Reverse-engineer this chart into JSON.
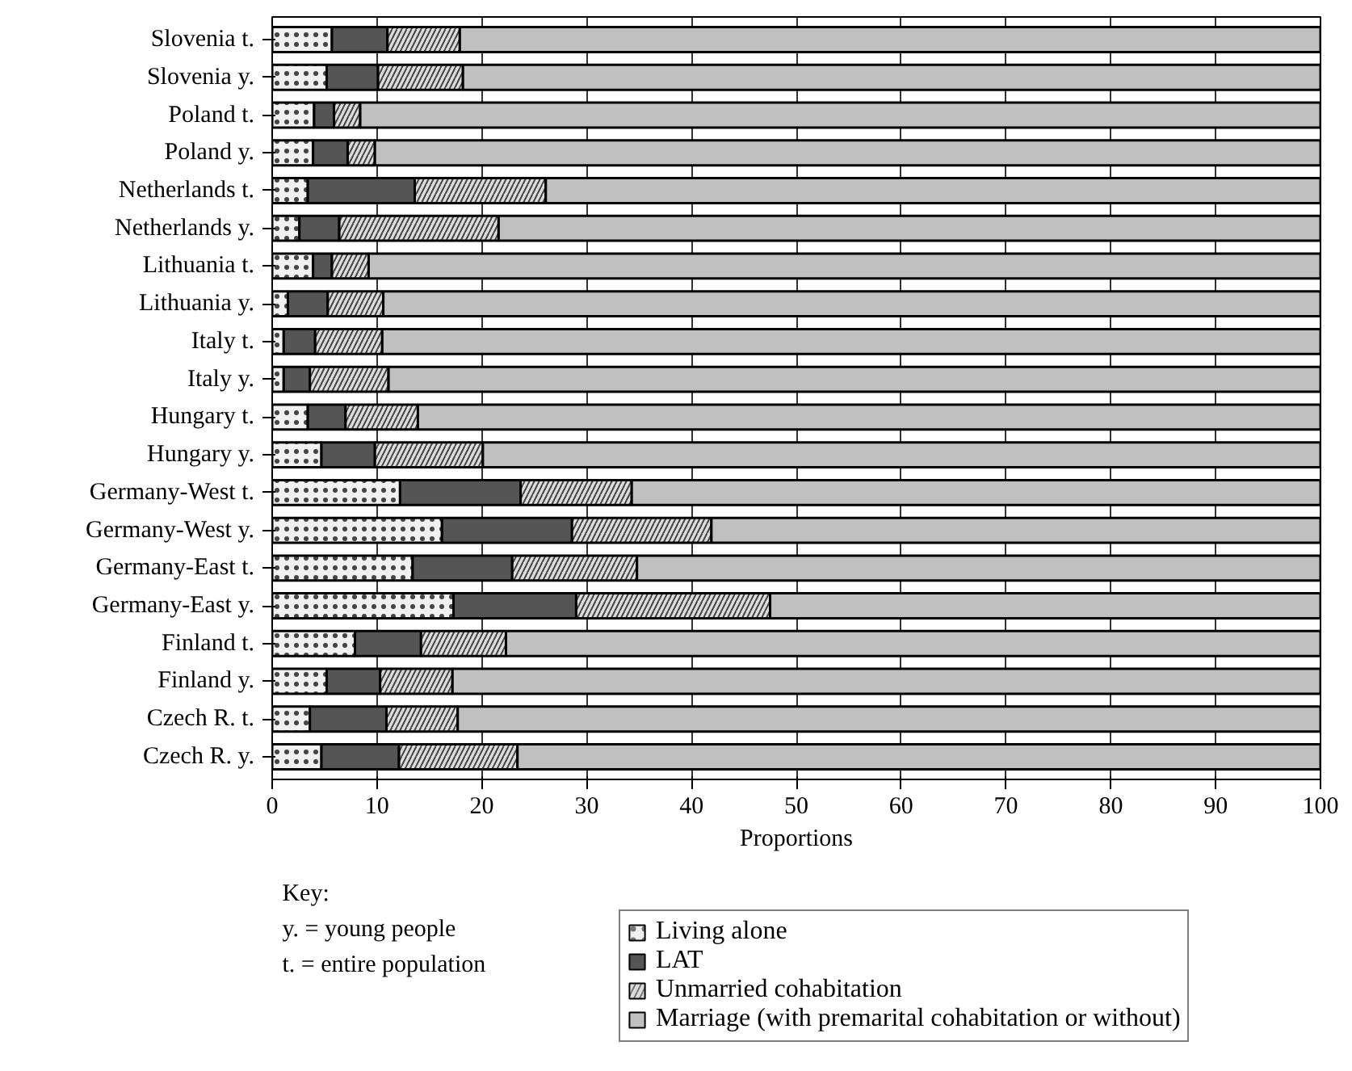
{
  "chart_data": {
    "type": "bar",
    "orientation": "horizontal",
    "stacked": true,
    "xlabel": "Proportions",
    "categories": [
      "Slovenia t.",
      "Slovenia y.",
      "Poland t.",
      "Poland y.",
      "Netherlands t.",
      "Netherlands y.",
      "Lithuania t.",
      "Lithuania y.",
      "Italy t.",
      "Italy y.",
      "Hungary t.",
      "Hungary y.",
      "Germany-West t.",
      "Germany-West y.",
      "Germany-East t.",
      "Germany-East y.",
      "Finland t.",
      "Finland y.",
      "Czech R. t.",
      "Czech R. y."
    ],
    "series": [
      {
        "name": "Living alone",
        "color": "#f0f0f0",
        "values": [
          5.7,
          5.2,
          4.0,
          3.9,
          3.4,
          2.6,
          3.9,
          1.5,
          1.1,
          1.1,
          3.4,
          4.7,
          12.2,
          16.2,
          13.4,
          17.3,
          7.9,
          5.2,
          3.6,
          4.7
        ]
      },
      {
        "name": "LAT",
        "color": "#555555",
        "values": [
          5.3,
          4.9,
          1.9,
          3.3,
          10.2,
          3.8,
          1.8,
          3.8,
          3.0,
          2.5,
          3.6,
          5.1,
          11.5,
          12.4,
          9.5,
          11.7,
          6.3,
          5.1,
          7.3,
          7.4
        ]
      },
      {
        "name": "Unmarried cohabitation",
        "color": "#dcdcdc",
        "values": [
          6.9,
          8.1,
          2.5,
          2.6,
          12.5,
          15.2,
          3.5,
          5.3,
          6.4,
          7.5,
          6.9,
          10.3,
          10.6,
          13.3,
          11.9,
          18.5,
          8.1,
          6.9,
          6.8,
          11.3
        ]
      },
      {
        "name": "Marriage (with premarital cohabitation or without)",
        "color": "#c0c0c0",
        "values": [
          82.1,
          81.8,
          91.6,
          90.2,
          73.9,
          78.4,
          90.8,
          89.4,
          89.5,
          88.9,
          86.1,
          79.9,
          65.7,
          58.1,
          65.2,
          52.5,
          77.7,
          82.8,
          82.3,
          76.6
        ]
      }
    ],
    "xlim": [
      0,
      100
    ],
    "xticks": [
      0,
      10,
      20,
      30,
      40,
      50,
      60,
      70,
      80,
      90,
      100
    ],
    "grid": "x",
    "legend": "bottom",
    "annotations": [
      "Key:",
      "y. = young people",
      "t. = entire population"
    ]
  }
}
